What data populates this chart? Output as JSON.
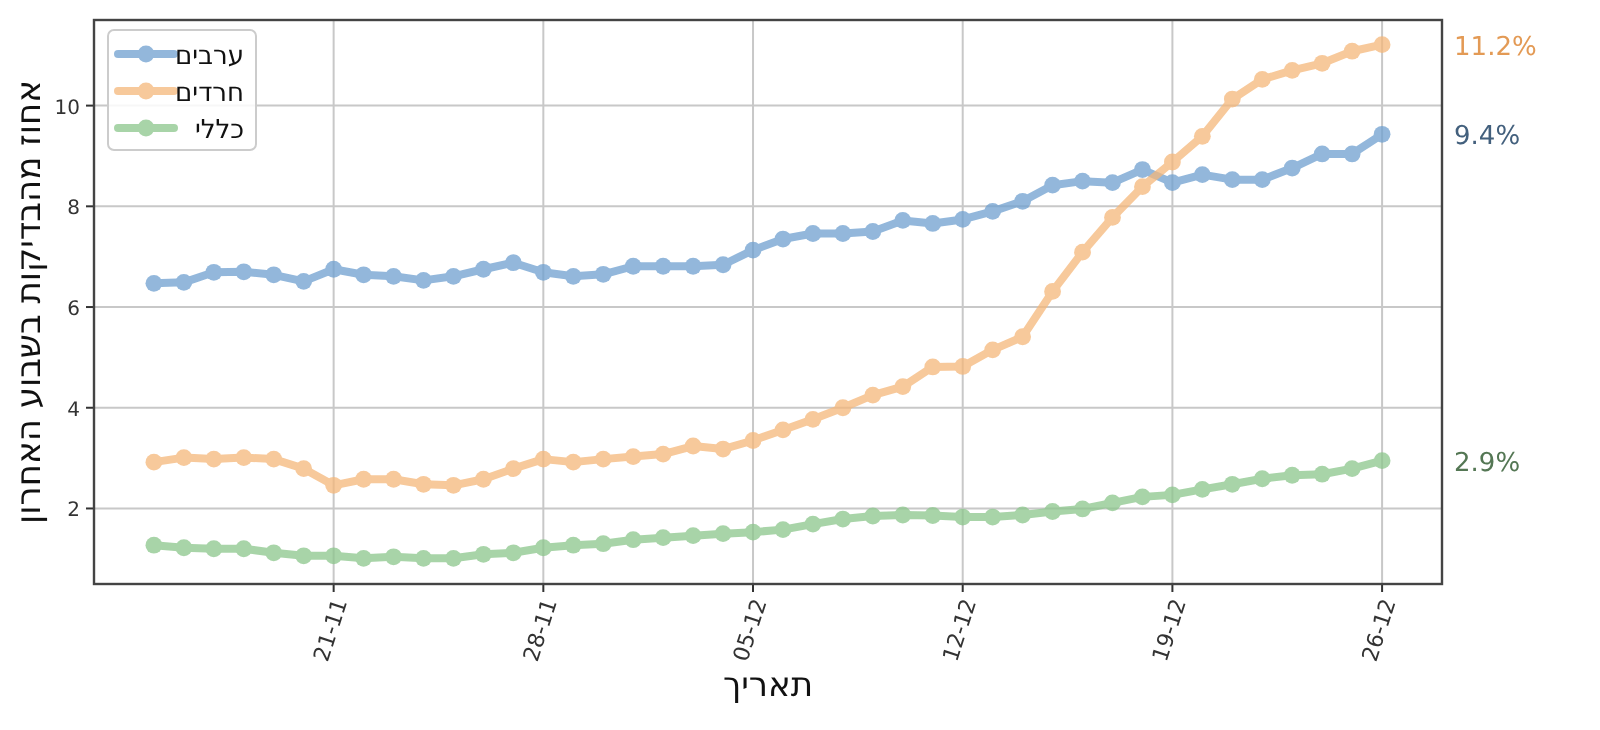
{
  "chart_data": {
    "type": "line",
    "xlabel": "תאריך",
    "ylabel": "אחוז מהבדיקות בשבוע האחרון",
    "x": [
      "--11-15",
      "--11-16",
      "--11-17",
      "--11-18",
      "--11-19",
      "--11-20",
      "--11-21",
      "--11-22",
      "--11-23",
      "--11-24",
      "--11-25",
      "--11-26",
      "--11-27",
      "--11-28",
      "--11-29",
      "--11-30",
      "--12-01",
      "--12-02",
      "--12-03",
      "--12-04",
      "--12-05",
      "--12-06",
      "--12-07",
      "--12-08",
      "--12-09",
      "--12-10",
      "--12-11",
      "--12-12",
      "--12-13",
      "--12-14",
      "--12-15",
      "--12-16",
      "--12-17",
      "--12-18",
      "--12-19",
      "--12-20",
      "--12-21",
      "--12-22",
      "--12-23",
      "--12-24",
      "--12-25",
      "--12-26"
    ],
    "series": [
      {
        "name": "ערבים",
        "color": "#6fa0d0",
        "values": [
          6.47,
          6.49,
          6.69,
          6.7,
          6.64,
          6.51,
          6.75,
          6.64,
          6.61,
          6.53,
          6.61,
          6.75,
          6.88,
          6.69,
          6.61,
          6.65,
          6.81,
          6.81,
          6.81,
          6.84,
          7.13,
          7.35,
          7.46,
          7.46,
          7.5,
          7.72,
          7.66,
          7.74,
          7.9,
          8.1,
          8.42,
          8.5,
          8.47,
          8.73,
          8.47,
          8.63,
          8.53,
          8.53,
          8.76,
          9.04,
          9.04,
          9.43
        ]
      },
      {
        "name": "חרדים",
        "color": "#f5b77a",
        "values": [
          2.92,
          3.01,
          2.98,
          3.01,
          2.98,
          2.79,
          2.46,
          2.58,
          2.58,
          2.48,
          2.46,
          2.58,
          2.79,
          2.98,
          2.92,
          2.98,
          3.03,
          3.08,
          3.24,
          3.18,
          3.35,
          3.56,
          3.77,
          4.0,
          4.25,
          4.42,
          4.81,
          4.82,
          5.15,
          5.41,
          6.31,
          7.09,
          7.78,
          8.39,
          8.88,
          9.39,
          10.13,
          10.52,
          10.7,
          10.84,
          11.08,
          11.21
        ]
      },
      {
        "name": "כללי",
        "color": "#8cc68c",
        "values": [
          1.27,
          1.22,
          1.2,
          1.2,
          1.12,
          1.06,
          1.06,
          1.01,
          1.04,
          1.01,
          1.01,
          1.09,
          1.12,
          1.22,
          1.27,
          1.3,
          1.38,
          1.42,
          1.46,
          1.5,
          1.53,
          1.58,
          1.69,
          1.79,
          1.85,
          1.87,
          1.86,
          1.83,
          1.83,
          1.87,
          1.94,
          1.99,
          2.11,
          2.23,
          2.27,
          2.38,
          2.48,
          2.59,
          2.66,
          2.68,
          2.79,
          2.95
        ]
      }
    ],
    "xlim": [
      "--11-13",
      "--12-28"
    ],
    "xticks": [
      {
        "value": "--11-21",
        "label": "21-11"
      },
      {
        "value": "--11-28",
        "label": "28-11"
      },
      {
        "value": "--12-05",
        "label": "05-12"
      },
      {
        "value": "--12-12",
        "label": "12-12"
      },
      {
        "value": "--12-19",
        "label": "19-12"
      },
      {
        "value": "--12-26",
        "label": "26-12"
      }
    ],
    "ylim": [
      0.5,
      11.7
    ],
    "yticks": [
      2,
      4,
      6,
      8,
      10
    ],
    "grid": true,
    "legend": "top left",
    "marker": "circle",
    "line_style": "solid",
    "annotations": [
      {
        "text": "9.4%",
        "x": "--12-26",
        "y": 9.43
      },
      {
        "text": "11.2%",
        "x": "--12-26",
        "y": 11.21
      },
      {
        "text": "2.9%",
        "x": "--12-26",
        "y": 2.95
      }
    ]
  }
}
